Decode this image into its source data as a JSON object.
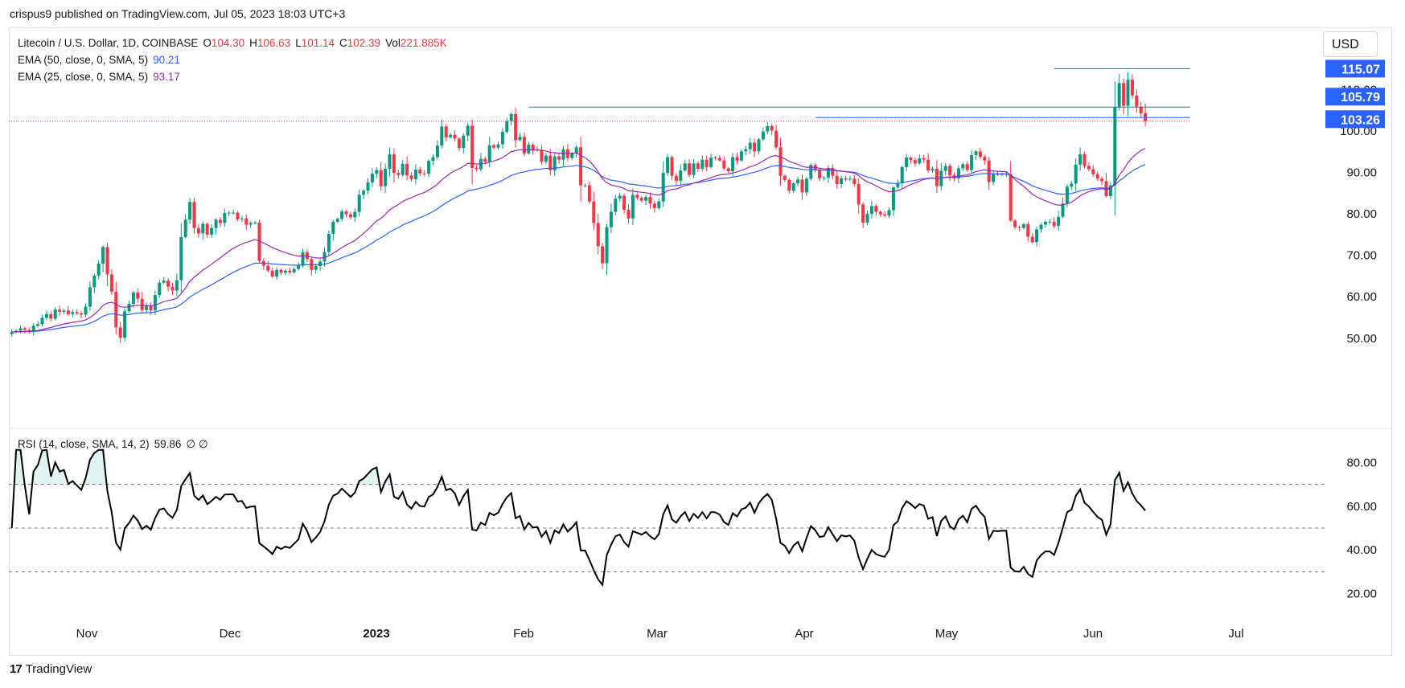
{
  "header": {
    "text": "crispus9 published on TradingView.com, Jul 05, 2023 18:03 UTC+3"
  },
  "legend": {
    "symbol": "Litecoin / U.S. Dollar, 1D, COINBASE",
    "o_label": "O",
    "o": "104.30",
    "h_label": "H",
    "h": "106.63",
    "l_label": "L",
    "l": "101.14",
    "c_label": "C",
    "c": "102.39",
    "vol_label": "Vol",
    "vol": "221.885K",
    "ema50_label": "EMA (50, close, 0, SMA, 5)",
    "ema50_value": "90.21",
    "ema25_label": "EMA (25, close, 0, SMA, 5)",
    "ema25_value": "93.17",
    "rsi_label": "RSI (14, close, SMA, 14, 2)",
    "rsi_value": "59.86",
    "rsi_extra": "∅ ∅"
  },
  "currency": "USD",
  "brand": {
    "logo": "17",
    "name": "TradingView"
  },
  "colors": {
    "up": "#089981",
    "down": "#f23645",
    "ema50": "#2962ff",
    "ema25": "#9c27b0",
    "rsi": "#000000",
    "level": "#2962ff",
    "badge": "#2962ff"
  },
  "chart_data": [
    {
      "type": "candlestick",
      "title": "Litecoin / U.S. Dollar, 1D, COINBASE",
      "x_axis": {
        "ticks": [
          "Nov",
          "Dec",
          "2023",
          "Feb",
          "Mar",
          "Apr",
          "May",
          "Jun",
          "Jul"
        ]
      },
      "y_axis": {
        "side": "right",
        "ticks": [
          "50.00",
          "60.00",
          "70.00",
          "80.00",
          "90.00",
          "100.00",
          "110.00"
        ],
        "ylim": [
          42,
          120
        ]
      },
      "price_labels": [
        "115.07",
        "105.79",
        "103.26"
      ],
      "horizontal_levels": [
        {
          "value": 115.07,
          "from_day": 240,
          "to_day": 272
        },
        {
          "value": 105.79,
          "from_day": 119,
          "to_day": 272
        },
        {
          "value": 103.26,
          "from_day": 185,
          "to_day": 272
        }
      ],
      "last_price_dotted": 102.39,
      "close": [
        51.5,
        51.8,
        52.4,
        52.0,
        51.7,
        53.0,
        53.4,
        54.9,
        55.8,
        54.7,
        56.9,
        56.4,
        56.7,
        55.8,
        56.3,
        56.0,
        55.7,
        57.6,
        62.3,
        65.1,
        68.0,
        72.0,
        65.4,
        61.2,
        52.6,
        50.1,
        56.5,
        58.3,
        61.0,
        59.5,
        56.8,
        57.9,
        56.7,
        60.4,
        63.4,
        63.9,
        62.4,
        61.5,
        64.0,
        74.4,
        78.6,
        82.9,
        76.6,
        75.3,
        77.6,
        75.0,
        76.6,
        78.6,
        77.8,
        80.2,
        80.3,
        80.3,
        78.7,
        78.9,
        77.4,
        77.8,
        77.9,
        68.6,
        67.5,
        66.3,
        64.9,
        66.5,
        65.8,
        66.3,
        65.9,
        66.7,
        67.5,
        70.7,
        69.1,
        66.5,
        67.4,
        68.5,
        70.8,
        75.2,
        78.1,
        78.8,
        80.6,
        79.9,
        79.2,
        80.5,
        84.6,
        85.6,
        87.6,
        89.7,
        90.6,
        86.7,
        90.9,
        94.4,
        89.9,
        89.4,
        92.1,
        89.3,
        88.4,
        90.7,
        89.8,
        89.7,
        92.8,
        93.7,
        96.5,
        101.1,
        98.5,
        99.1,
        98.2,
        95.9,
        98.9,
        101.3,
        91.1,
        90.8,
        93.3,
        92.6,
        96.6,
        96.0,
        96.8,
        99.8,
        102.4,
        104.1,
        97.8,
        98.6,
        94.6,
        96.7,
        95.3,
        95.5,
        92.6,
        94.1,
        90.5,
        93.9,
        93.1,
        95.6,
        93.5,
        94.6,
        96.1,
        86.9,
        86.9,
        83.0,
        77.8,
        72.2,
        68.1,
        76.8,
        80.5,
        83.7,
        84.4,
        81.0,
        78.9,
        84.6,
        83.9,
        83.2,
        84.1,
        82.5,
        81.4,
        83.0,
        89.9,
        93.7,
        89.2,
        88.0,
        90.5,
        92.2,
        89.4,
        92.2,
        90.9,
        93.1,
        91.3,
        93.6,
        93.5,
        92.9,
        91.0,
        90.3,
        93.7,
        92.9,
        95.1,
        95.6,
        97.2,
        95.1,
        98.0,
        99.9,
        101.2,
        100.1,
        96.1,
        89.2,
        88.2,
        85.6,
        87.4,
        88.3,
        85.2,
        88.5,
        91.8,
        90.6,
        88.6,
        88.8,
        91.1,
        89.2,
        87.2,
        88.6,
        88.3,
        88.5,
        87.2,
        82.3,
        77.9,
        80.0,
        81.9,
        80.5,
        79.9,
        79.6,
        80.9,
        86.4,
        87.4,
        91.3,
        93.6,
        93.0,
        92.2,
        93.4,
        93.1,
        90.5,
        90.9,
        86.7,
        90.4,
        91.6,
        89.3,
        88.6,
        91.0,
        92.0,
        90.6,
        94.2,
        95.1,
        93.8,
        92.9,
        87.7,
        89.6,
        89.5,
        89.6,
        89.6,
        78.4,
        76.8,
        76.6,
        77.5,
        74.5,
        73.2,
        76.3,
        77.4,
        78.1,
        78.1,
        77.1,
        79.3,
        82.5,
        86.6,
        87.3,
        91.9,
        94.4,
        91.6,
        90.8,
        89.6,
        88.5,
        87.9,
        84.3,
        86.9,
        105.8,
        111.6,
        106.1,
        112.4,
        108.6,
        105.9,
        104.3,
        102.4
      ],
      "ema25_end": 93.17,
      "ema50_end": 90.21
    },
    {
      "type": "line",
      "title": "RSI (14, close, SMA, 14, 2)",
      "y_axis": {
        "side": "right",
        "ticks": [
          "20.00",
          "40.00",
          "60.00",
          "80.00"
        ],
        "ylim": [
          13.3,
          86.7
        ]
      },
      "bands": [
        70,
        50,
        30
      ],
      "last_value": 59.86
    }
  ]
}
